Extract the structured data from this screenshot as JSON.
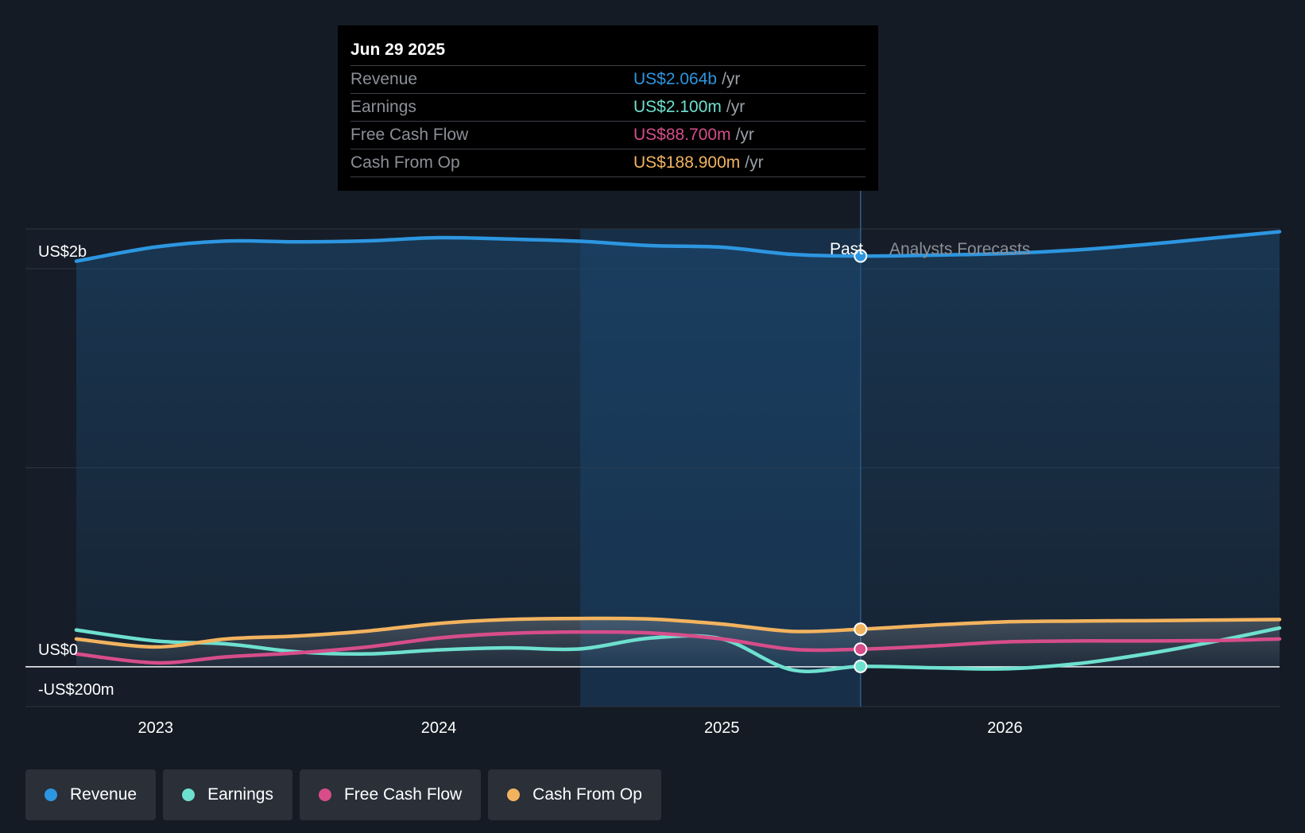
{
  "tooltip": {
    "date": "Jun 29 2025",
    "rows": [
      {
        "label": "Revenue",
        "value": "US$2.064b",
        "unit": "/yr",
        "color": "#2d96e0"
      },
      {
        "label": "Earnings",
        "value": "US$2.100m",
        "unit": "/yr",
        "color": "#6ee0cf"
      },
      {
        "label": "Free Cash Flow",
        "value": "US$88.700m",
        "unit": "/yr",
        "color": "#d64d8a"
      },
      {
        "label": "Cash From Op",
        "value": "US$188.900m",
        "unit": "/yr",
        "color": "#f2b35f"
      }
    ]
  },
  "labels": {
    "past": "Past",
    "forecast": "Analysts Forecasts"
  },
  "legend": [
    {
      "label": "Revenue",
      "color": "#2d96e0"
    },
    {
      "label": "Earnings",
      "color": "#6ee0cf"
    },
    {
      "label": "Free Cash Flow",
      "color": "#d64d8a"
    },
    {
      "label": "Cash From Op",
      "color": "#f2b35f"
    }
  ],
  "chart_data": {
    "type": "line",
    "y_unit": "US$ millions",
    "ylim": [
      -200,
      2200
    ],
    "y_tick_labels": [
      {
        "value": 2000,
        "label": "US$2b"
      },
      {
        "value": 0,
        "label": "US$0"
      },
      {
        "value": -200,
        "label": "-US$200m"
      }
    ],
    "xlim": [
      2022.53,
      2026.97
    ],
    "x_ticks": [
      2023,
      2024,
      2025,
      2026
    ],
    "x_tick_labels": [
      "2023",
      "2024",
      "2025",
      "2026"
    ],
    "highlight_range": [
      2024.5,
      2025.5
    ],
    "past_end": 2025.49,
    "series": [
      {
        "name": "Revenue",
        "color": "#2d96e0",
        "points": [
          [
            2022.72,
            2038
          ],
          [
            2023.0,
            2109
          ],
          [
            2023.25,
            2139
          ],
          [
            2023.5,
            2135
          ],
          [
            2023.75,
            2140
          ],
          [
            2024.0,
            2156
          ],
          [
            2024.25,
            2149
          ],
          [
            2024.5,
            2138
          ],
          [
            2024.75,
            2116
          ],
          [
            2025.0,
            2108
          ],
          [
            2025.25,
            2072
          ],
          [
            2025.49,
            2064
          ],
          [
            2025.75,
            2068
          ],
          [
            2026.0,
            2076
          ],
          [
            2026.25,
            2094
          ],
          [
            2026.5,
            2122
          ],
          [
            2026.75,
            2156
          ],
          [
            2026.97,
            2186
          ]
        ]
      },
      {
        "name": "Earnings",
        "color": "#6ee0cf",
        "points": [
          [
            2022.72,
            185
          ],
          [
            2023.0,
            130
          ],
          [
            2023.25,
            115
          ],
          [
            2023.5,
            75
          ],
          [
            2023.75,
            65
          ],
          [
            2024.0,
            85
          ],
          [
            2024.25,
            95
          ],
          [
            2024.5,
            90
          ],
          [
            2024.75,
            145
          ],
          [
            2025.0,
            140
          ],
          [
            2025.25,
            -16
          ],
          [
            2025.49,
            2.1
          ],
          [
            2025.75,
            -5
          ],
          [
            2026.0,
            -10
          ],
          [
            2026.25,
            15
          ],
          [
            2026.5,
            65
          ],
          [
            2026.75,
            130
          ],
          [
            2026.97,
            195
          ]
        ]
      },
      {
        "name": "Free Cash Flow",
        "color": "#d64d8a",
        "points": [
          [
            2022.72,
            65
          ],
          [
            2023.0,
            20
          ],
          [
            2023.25,
            50
          ],
          [
            2023.5,
            70
          ],
          [
            2023.75,
            100
          ],
          [
            2024.0,
            145
          ],
          [
            2024.25,
            168
          ],
          [
            2024.5,
            175
          ],
          [
            2024.75,
            170
          ],
          [
            2025.0,
            140
          ],
          [
            2025.25,
            88
          ],
          [
            2025.49,
            88.7
          ],
          [
            2025.75,
            105
          ],
          [
            2026.0,
            125
          ],
          [
            2026.25,
            130
          ],
          [
            2026.5,
            130
          ],
          [
            2026.75,
            132
          ],
          [
            2026.97,
            140
          ]
        ]
      },
      {
        "name": "Cash From Op",
        "color": "#f2b35f",
        "points": [
          [
            2022.72,
            140
          ],
          [
            2023.0,
            100
          ],
          [
            2023.25,
            140
          ],
          [
            2023.5,
            155
          ],
          [
            2023.75,
            180
          ],
          [
            2024.0,
            218
          ],
          [
            2024.25,
            238
          ],
          [
            2024.5,
            243
          ],
          [
            2024.75,
            240
          ],
          [
            2025.0,
            215
          ],
          [
            2025.25,
            178
          ],
          [
            2025.49,
            188.9
          ],
          [
            2025.75,
            210
          ],
          [
            2026.0,
            226
          ],
          [
            2026.25,
            230
          ],
          [
            2026.5,
            232
          ],
          [
            2026.75,
            235
          ],
          [
            2026.97,
            238
          ]
        ]
      }
    ]
  }
}
